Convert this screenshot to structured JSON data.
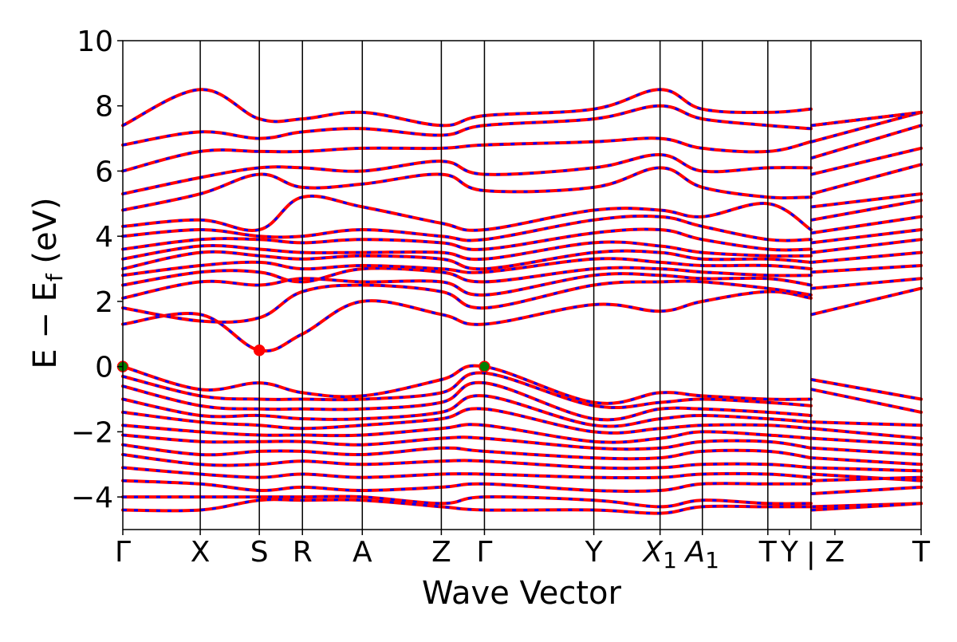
{
  "chart_data": {
    "type": "line",
    "title": "",
    "xlabel": "Wave Vector",
    "ylabel": "E − E",
    "ylabel_sub": "f",
    "ylabel_unit": " (eV)",
    "xlim": [
      0,
      1
    ],
    "ylim": [
      -5,
      10
    ],
    "y_ticks": [
      -4,
      -2,
      0,
      2,
      4,
      6,
      8,
      10
    ],
    "y_tick_labels": [
      "−4",
      "−2",
      "0",
      "2",
      "4",
      "6",
      "8",
      "10"
    ],
    "grid": false,
    "legend": "none",
    "high_symmetry_points": [
      {
        "x": 0.0,
        "label": "Γ",
        "line": false
      },
      {
        "x": 0.097,
        "label": "X",
        "line": true
      },
      {
        "x": 0.171,
        "label": "S",
        "line": true
      },
      {
        "x": 0.225,
        "label": "R",
        "line": true
      },
      {
        "x": 0.3,
        "label": "A",
        "line": true
      },
      {
        "x": 0.399,
        "label": "Z",
        "line": true
      },
      {
        "x": 0.453,
        "label": "Γ",
        "line": true
      },
      {
        "x": 0.59,
        "label": "Y",
        "line": true
      },
      {
        "x": 0.673,
        "label": "X",
        "sub": "1",
        "italic": true,
        "line": true
      },
      {
        "x": 0.726,
        "label": "A",
        "sub": "1",
        "italic": true,
        "line": true
      },
      {
        "x": 0.808,
        "label": "T",
        "line": true
      },
      {
        "x": 0.835,
        "label": "Y",
        "line": false
      },
      {
        "x": 0.862,
        "label": "|",
        "line": true
      },
      {
        "x": 0.892,
        "label": "Z",
        "line": false
      },
      {
        "x": 1.0,
        "label": "T",
        "line": false
      }
    ],
    "colors": {
      "band_primary": "#ff0000",
      "band_secondary": "#0000ff",
      "vbm_marker": "#008000",
      "cbm_marker": "#ff0000"
    },
    "band_knots": [
      0,
      0.097,
      0.171,
      0.225,
      0.3,
      0.399,
      0.453,
      0.59,
      0.673,
      0.726,
      0.808,
      0.862,
      0.863,
      1.0
    ],
    "conduction_bands": [
      [
        1.3,
        1.6,
        0.5,
        1.0,
        2.0,
        1.6,
        1.3,
        1.9,
        1.7,
        2.0,
        2.3,
        2.1,
        1.6,
        2.4
      ],
      [
        1.8,
        1.4,
        1.5,
        2.3,
        2.5,
        2.3,
        1.8,
        2.5,
        2.6,
        2.6,
        2.4,
        2.2,
        2.4,
        2.7
      ],
      [
        2.1,
        2.6,
        2.5,
        2.7,
        2.6,
        2.6,
        2.2,
        2.8,
        2.8,
        2.7,
        2.7,
        2.5,
        2.9,
        3.1
      ],
      [
        2.5,
        2.9,
        2.9,
        2.6,
        3.0,
        2.9,
        2.6,
        3.0,
        3.0,
        2.9,
        2.8,
        2.8,
        3.2,
        3.5
      ],
      [
        2.8,
        3.1,
        3.2,
        3.0,
        3.1,
        3.0,
        2.9,
        3.3,
        3.2,
        3.1,
        3.1,
        3.0,
        3.5,
        3.9
      ],
      [
        3.0,
        3.5,
        3.4,
        3.3,
        3.4,
        3.3,
        3.0,
        3.5,
        3.5,
        3.3,
        3.3,
        3.2,
        3.8,
        4.2
      ],
      [
        3.3,
        3.7,
        3.6,
        3.5,
        3.5,
        3.5,
        3.3,
        3.8,
        3.7,
        3.5,
        3.4,
        3.4,
        4.1,
        4.6
      ],
      [
        3.6,
        3.9,
        3.9,
        3.8,
        3.9,
        3.8,
        3.6,
        4.1,
        4.2,
        3.9,
        3.6,
        3.6,
        4.5,
        5.1
      ],
      [
        4.0,
        4.2,
        4.0,
        4.0,
        4.2,
        4.0,
        3.9,
        4.5,
        4.6,
        4.3,
        3.9,
        3.9,
        4.9,
        5.3
      ],
      [
        4.3,
        4.5,
        4.2,
        5.2,
        4.9,
        4.4,
        4.2,
        4.8,
        4.8,
        4.6,
        5.0,
        4.2,
        5.3,
        6.2
      ],
      [
        4.8,
        5.3,
        5.9,
        5.5,
        5.6,
        5.9,
        5.4,
        5.5,
        6.1,
        5.5,
        5.2,
        5.2,
        5.9,
        6.7
      ],
      [
        5.3,
        5.8,
        6.1,
        6.1,
        6.0,
        6.3,
        5.9,
        6.1,
        6.5,
        6.0,
        6.1,
        6.1,
        6.4,
        7.4
      ],
      [
        6.0,
        6.6,
        6.6,
        6.6,
        6.7,
        6.7,
        6.8,
        6.9,
        7.0,
        6.7,
        6.6,
        6.9,
        6.9,
        7.8
      ],
      [
        6.8,
        7.2,
        7.0,
        7.2,
        7.3,
        7.1,
        7.4,
        7.6,
        8.0,
        7.6,
        7.4,
        7.3,
        7.4,
        7.8
      ],
      [
        7.4,
        8.5,
        7.6,
        7.6,
        7.8,
        7.4,
        7.7,
        7.9,
        8.5,
        7.9,
        7.8,
        7.9,
        7.4,
        7.8
      ]
    ],
    "valence_bands": [
      [
        0.0,
        -0.7,
        -0.5,
        -0.8,
        -0.9,
        -0.4,
        0.0,
        -1.1,
        -0.8,
        -0.9,
        -1.0,
        -1.0,
        -0.4,
        -1.0
      ],
      [
        -0.3,
        -0.9,
        -1.0,
        -1.0,
        -1.0,
        -0.8,
        -0.2,
        -1.2,
        -1.1,
        -1.0,
        -1.1,
        -1.2,
        -0.7,
        -1.4
      ],
      [
        -0.6,
        -1.2,
        -1.3,
        -1.3,
        -1.3,
        -1.1,
        -0.5,
        -1.6,
        -1.3,
        -1.3,
        -1.4,
        -1.5,
        -1.7,
        -1.8
      ],
      [
        -1.0,
        -1.5,
        -1.5,
        -1.6,
        -1.6,
        -1.4,
        -0.9,
        -1.8,
        -1.6,
        -1.5,
        -1.6,
        -1.7,
        -1.9,
        -2.2
      ],
      [
        -1.4,
        -1.7,
        -1.8,
        -1.9,
        -1.8,
        -1.6,
        -1.3,
        -2.0,
        -1.9,
        -1.8,
        -1.8,
        -1.9,
        -2.2,
        -2.4
      ],
      [
        -1.8,
        -2.0,
        -2.1,
        -2.1,
        -2.1,
        -1.9,
        -1.8,
        -2.3,
        -2.2,
        -2.0,
        -2.1,
        -2.2,
        -2.5,
        -2.7
      ],
      [
        -2.1,
        -2.3,
        -2.3,
        -2.3,
        -2.4,
        -2.2,
        -2.2,
        -2.5,
        -2.5,
        -2.3,
        -2.3,
        -2.5,
        -2.8,
        -3.0
      ],
      [
        -2.4,
        -2.7,
        -2.6,
        -2.6,
        -2.7,
        -2.5,
        -2.6,
        -2.8,
        -2.8,
        -2.6,
        -2.6,
        -2.8,
        -3.1,
        -3.2
      ],
      [
        -2.7,
        -3.0,
        -3.0,
        -2.9,
        -3.0,
        -2.9,
        -2.9,
        -3.1,
        -3.1,
        -3.0,
        -3.0,
        -3.1,
        -3.3,
        -3.5
      ],
      [
        -3.1,
        -3.3,
        -3.4,
        -3.3,
        -3.4,
        -3.3,
        -3.3,
        -3.4,
        -3.4,
        -3.3,
        -3.3,
        -3.4,
        -3.5,
        -3.4
      ],
      [
        -3.5,
        -3.6,
        -3.8,
        -3.7,
        -3.8,
        -3.7,
        -3.6,
        -3.8,
        -3.8,
        -3.6,
        -3.6,
        -3.6,
        -3.9,
        -3.7
      ],
      [
        -4.0,
        -4.0,
        -4.0,
        -4.0,
        -4.0,
        -4.2,
        -4.0,
        -4.1,
        -4.3,
        -4.1,
        -4.2,
        -4.2,
        -4.3,
        -4.2
      ],
      [
        -4.4,
        -4.4,
        -4.1,
        -4.1,
        -4.1,
        -4.3,
        -4.4,
        -4.4,
        -4.5,
        -4.3,
        -4.3,
        -4.3,
        -4.4,
        -4.2
      ]
    ],
    "markers": [
      {
        "x": 0.0,
        "y": 0.0,
        "kind": "vbm"
      },
      {
        "x": 0.453,
        "y": 0.0,
        "kind": "vbm"
      },
      {
        "x": 0.171,
        "y": 0.5,
        "kind": "cbm"
      }
    ]
  }
}
